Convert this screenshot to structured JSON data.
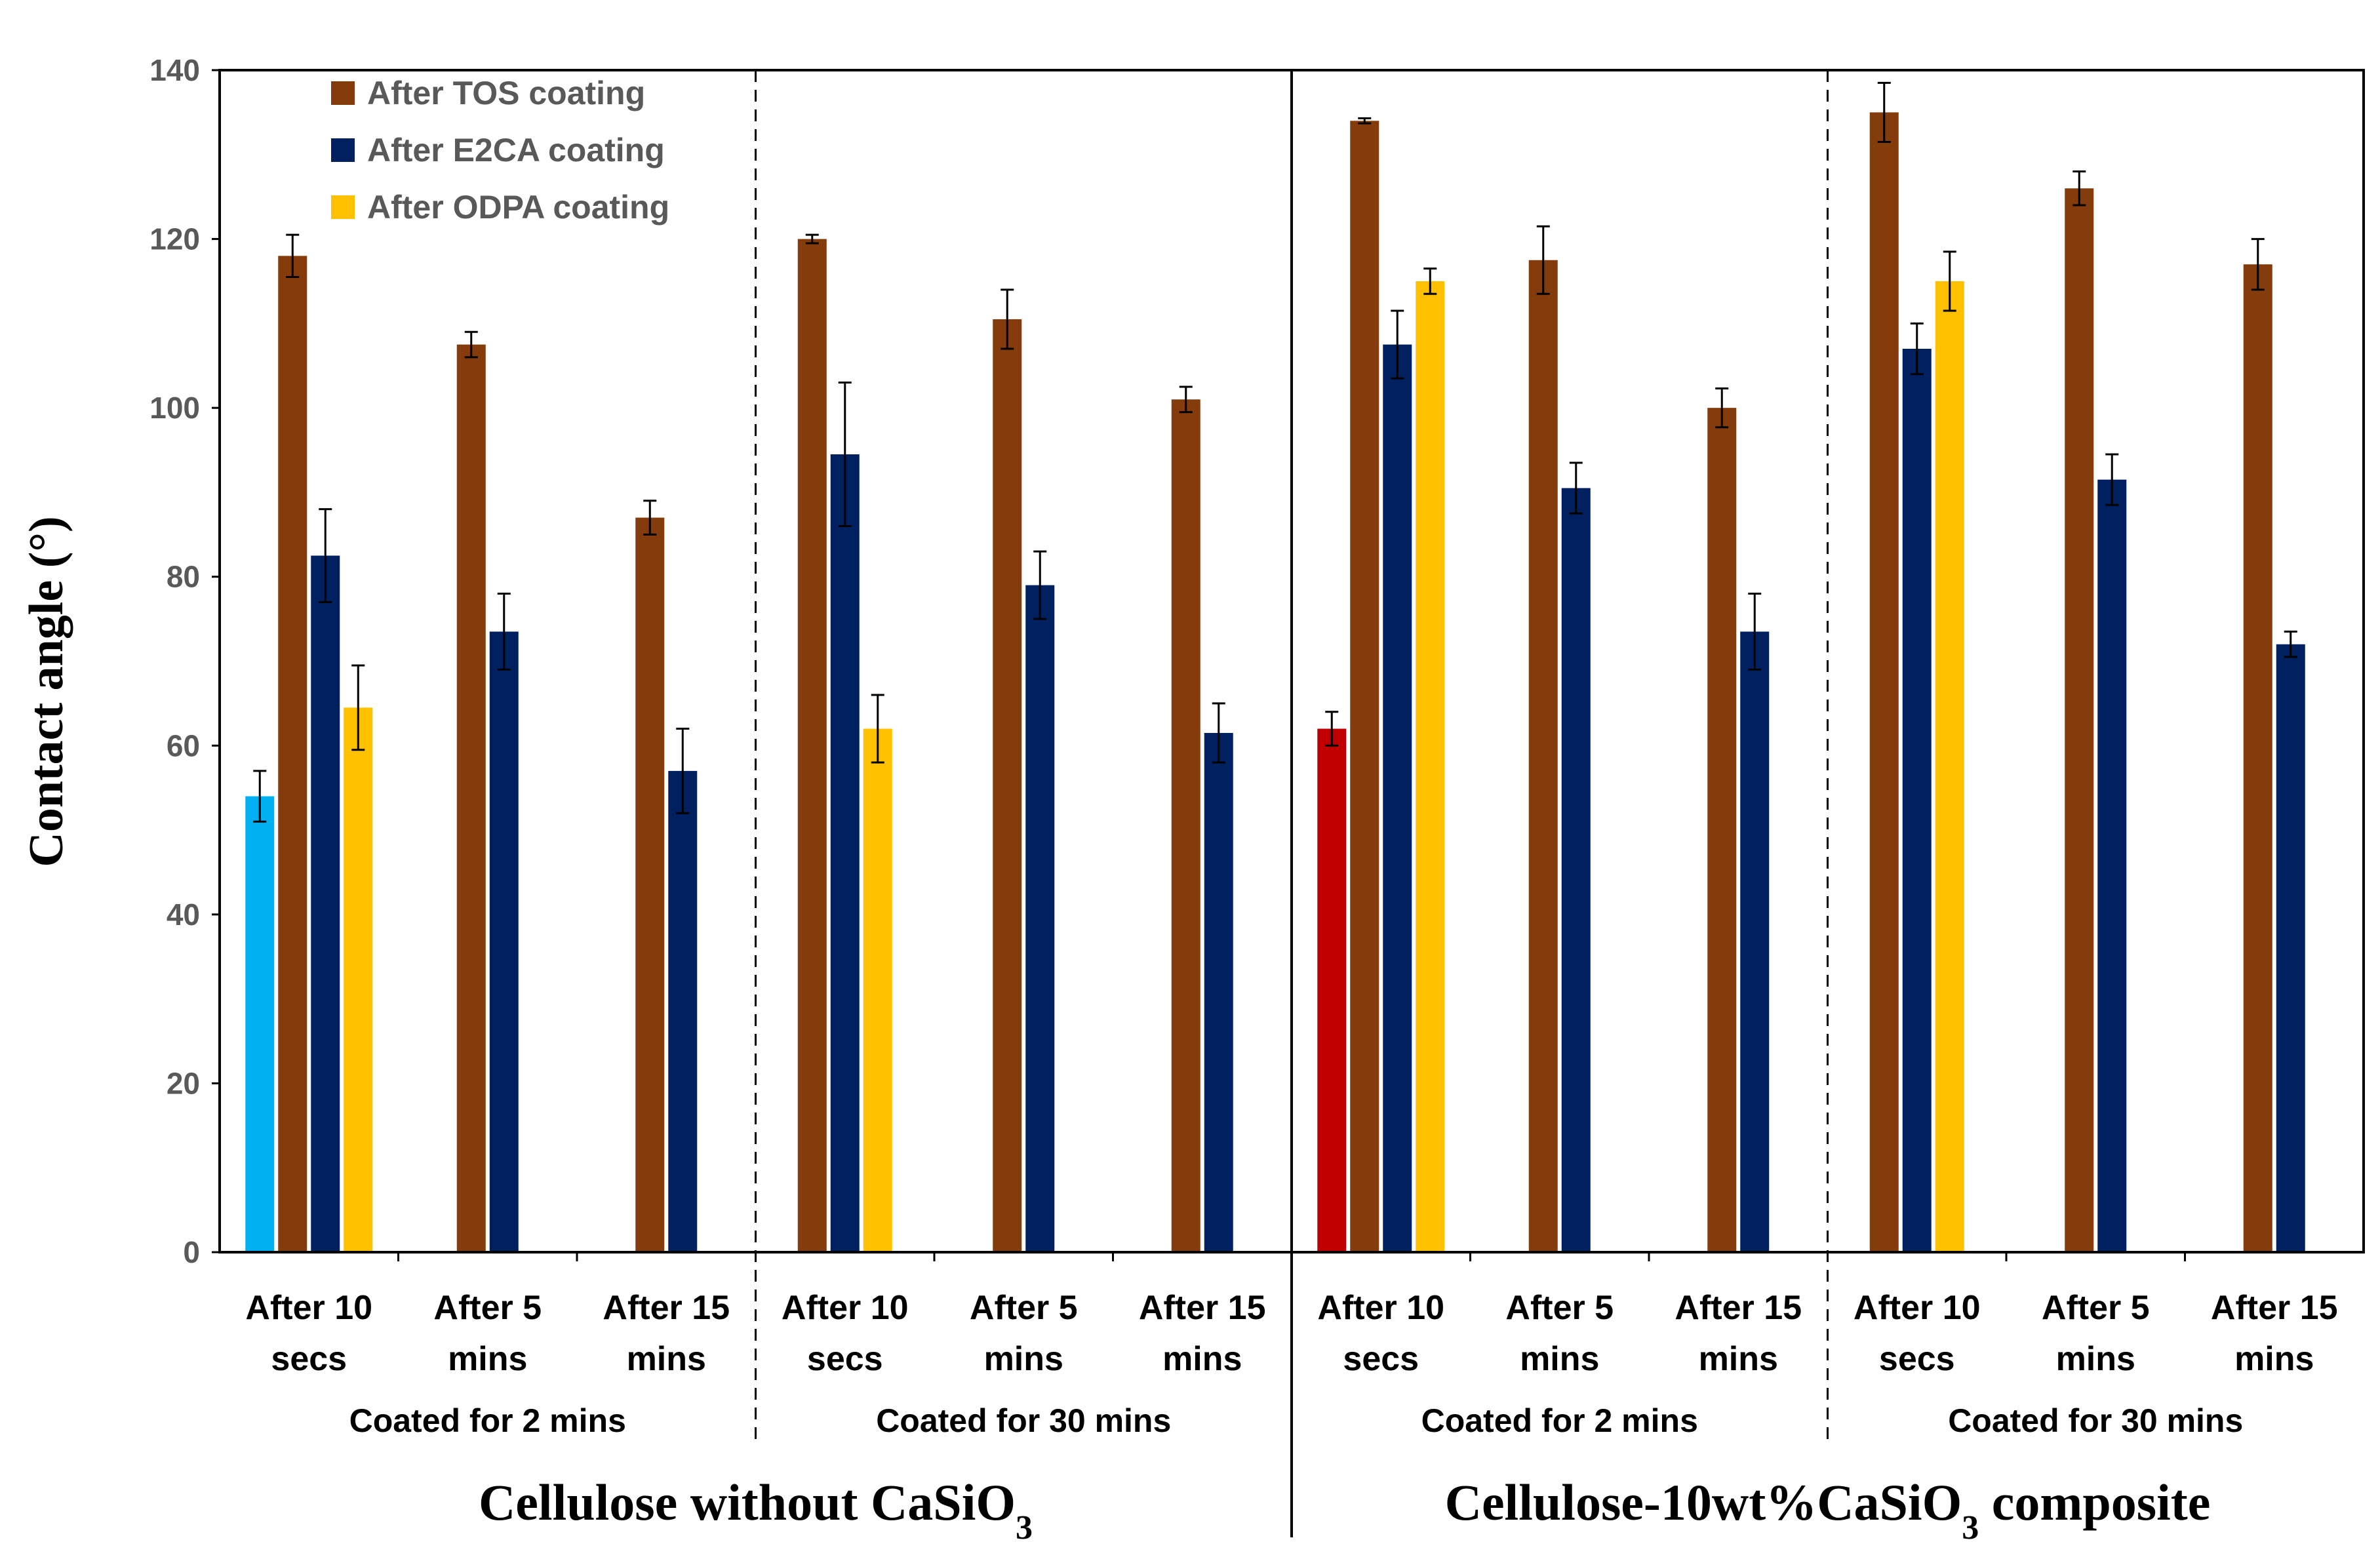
{
  "chart_data": {
    "type": "bar",
    "ylabel": "Contact angle (°)",
    "ylim": [
      0,
      140
    ],
    "yticks": [
      0,
      20,
      40,
      60,
      80,
      100,
      120,
      140
    ],
    "grid": false,
    "legend_position": "top-left",
    "legend": [
      {
        "name": "After TOS coating",
        "color": "#843c0c"
      },
      {
        "name": "After E2CA coating",
        "color": "#002060"
      },
      {
        "name": "After ODPA coating",
        "color": "#ffc000"
      }
    ],
    "categories": [
      {
        "line1": "After 10",
        "line2": "secs"
      },
      {
        "line1": "After 5",
        "line2": "mins"
      },
      {
        "line1": "After 15",
        "line2": "mins"
      },
      {
        "line1": "After 10",
        "line2": "secs"
      },
      {
        "line1": "After 5",
        "line2": "mins"
      },
      {
        "line1": "After 15",
        "line2": "mins"
      },
      {
        "line1": "After 10",
        "line2": "secs"
      },
      {
        "line1": "After 5",
        "line2": "mins"
      },
      {
        "line1": "After 15",
        "line2": "mins"
      },
      {
        "line1": "After 10",
        "line2": "secs"
      },
      {
        "line1": "After 5",
        "line2": "mins"
      },
      {
        "line1": "After 15",
        "line2": "mins"
      }
    ],
    "sub_groups": [
      "Coated for 2 mins",
      "Coated for 30 mins",
      "Coated for 2 mins",
      "Coated for 30 mins"
    ],
    "main_groups": [
      {
        "text": "Cellulose without CaSiO",
        "sub": "3",
        "tail": ""
      },
      {
        "text": "Cellulose-10wt%CaSiO",
        "sub": "3",
        "tail": " composite"
      }
    ],
    "uncoated": [
      {
        "category_index": 0,
        "value": 54,
        "error": 3,
        "color": "#00b0f0"
      },
      {
        "category_index": 6,
        "value": 62,
        "error": 2,
        "color": "#c00000"
      }
    ],
    "series": [
      {
        "name": "After TOS coating",
        "color": "#843c0c",
        "values": [
          118,
          107.5,
          87,
          120,
          110.5,
          101,
          134,
          117.5,
          100,
          135,
          126,
          117
        ],
        "errors": [
          2.5,
          1.5,
          2,
          0.5,
          3.5,
          1.5,
          0.3,
          4,
          2.3,
          3.5,
          2,
          3
        ]
      },
      {
        "name": "After E2CA coating",
        "color": "#002060",
        "values": [
          82.5,
          73.5,
          57,
          94.5,
          79,
          61.5,
          107.5,
          90.5,
          73.5,
          107,
          91.5,
          72
        ],
        "errors": [
          5.5,
          4.5,
          5,
          8.5,
          4,
          3.5,
          4,
          3,
          4.5,
          3,
          3,
          1.5
        ]
      },
      {
        "name": "After ODPA coating",
        "color": "#ffc000",
        "values": [
          64.5,
          null,
          null,
          62,
          null,
          null,
          115,
          null,
          null,
          115,
          null,
          null
        ],
        "errors": [
          5,
          null,
          null,
          4,
          null,
          null,
          1.5,
          null,
          null,
          3.5,
          null,
          null
        ]
      }
    ]
  }
}
